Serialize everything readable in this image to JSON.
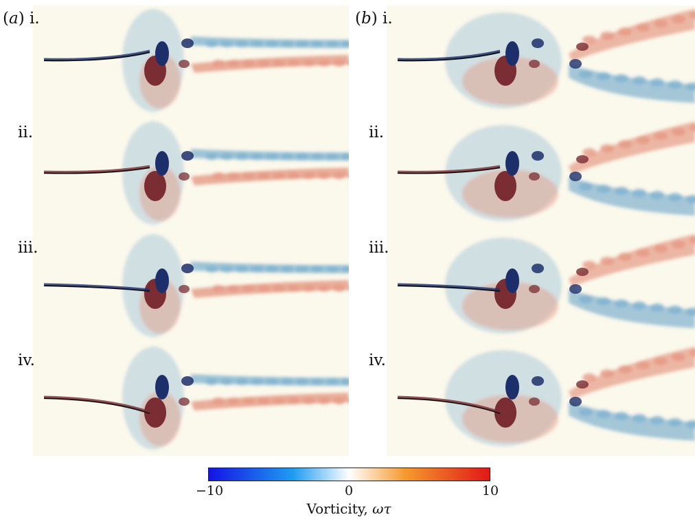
{
  "figure": {
    "group_a_label": "a",
    "group_b_label": "b",
    "panels": [
      {
        "group": "a",
        "row": "i."
      },
      {
        "group": "a",
        "row": "ii."
      },
      {
        "group": "a",
        "row": "iii."
      },
      {
        "group": "a",
        "row": "iv."
      },
      {
        "group": "b",
        "row": "i."
      },
      {
        "group": "b",
        "row": "ii."
      },
      {
        "group": "b",
        "row": "iii."
      },
      {
        "group": "b",
        "row": "iv."
      }
    ]
  },
  "colorbar": {
    "min_label": "−10",
    "mid_label": "0",
    "max_label": "10",
    "title_text": "Vorticity, ",
    "title_symbol": "ωτ",
    "colors": {
      "negative_max": "#1414e6",
      "negative_mid": "#1f9cf0",
      "zero": "#ffffff",
      "positive_mid": "#f59a2c",
      "positive_max": "#e01818"
    }
  },
  "colors": {
    "background": "#fbf8ec",
    "light_blue": "#7fb1cf",
    "dark_blue": "#1d2f6b",
    "light_red": "#e59a85",
    "dark_red": "#7a2d33"
  }
}
